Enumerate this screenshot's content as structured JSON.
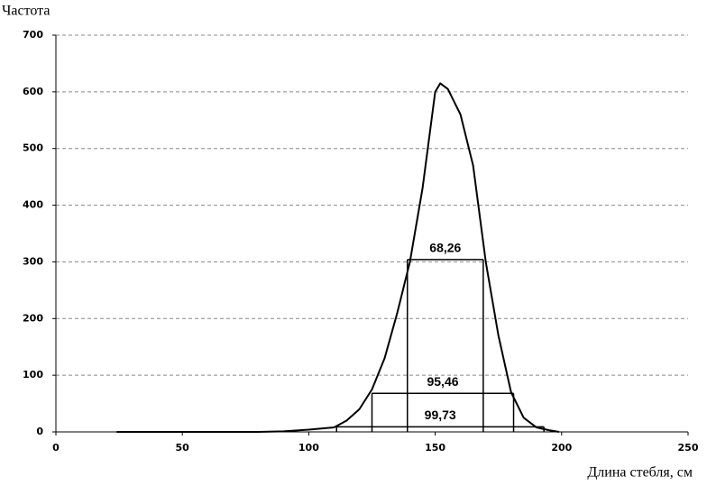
{
  "chart_data": {
    "type": "line",
    "y_label": "Частота",
    "x_label": "Длина стебля, см",
    "x": [
      24,
      50,
      80,
      90,
      100,
      110,
      115,
      120,
      125,
      130,
      135,
      140,
      145,
      150,
      152,
      155,
      160,
      165,
      170,
      175,
      180,
      185,
      190,
      195,
      199
    ],
    "series": [
      {
        "color": "#000000",
        "values": [
          0,
          0,
          0,
          1,
          4,
          8,
          20,
          40,
          75,
          130,
          210,
          300,
          430,
          600,
          615,
          605,
          560,
          470,
          300,
          170,
          70,
          25,
          8,
          3,
          0
        ]
      }
    ],
    "intervals": [
      {
        "label": "68,26",
        "x": [
          139,
          169
        ],
        "y": 304
      },
      {
        "label": "95,46",
        "x": [
          125,
          181
        ],
        "y": 68
      },
      {
        "label": "99,73",
        "x": [
          111,
          193
        ],
        "y": 9
      }
    ],
    "xlim": [
      0,
      250
    ],
    "xticks": [
      0,
      50,
      100,
      150,
      200,
      250
    ],
    "ylim": [
      0,
      700
    ],
    "yticks": [
      0,
      100,
      200,
      300,
      400,
      500,
      600,
      700
    ],
    "grid": true
  }
}
